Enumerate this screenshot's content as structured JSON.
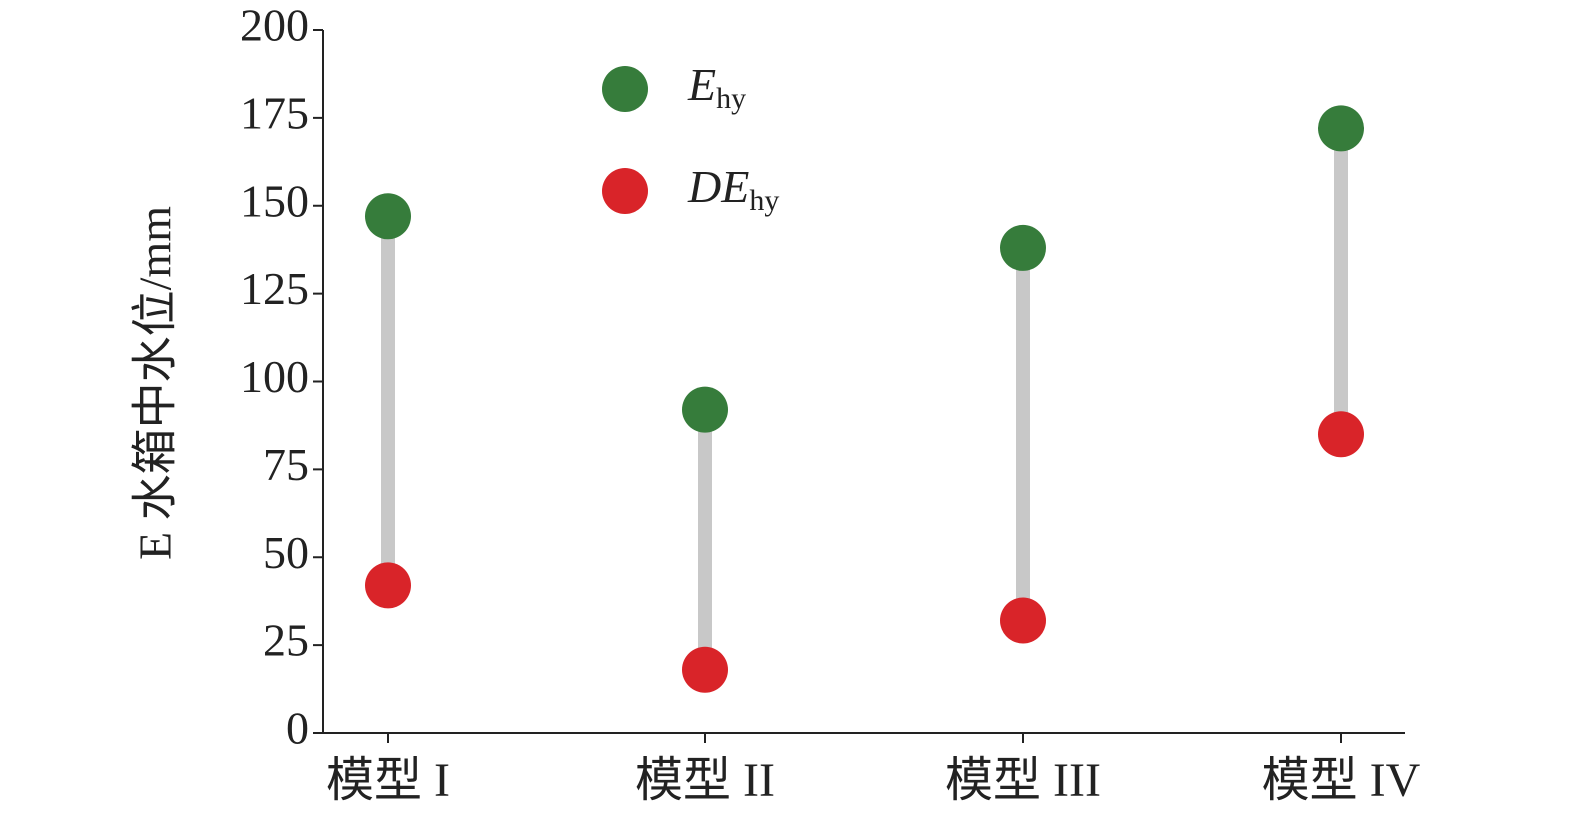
{
  "chart_data": {
    "type": "dumbbell",
    "y_label": "E 水箱中水位/mm",
    "categories": [
      "模型 I",
      "模型 II",
      "模型 III",
      "模型 IV"
    ],
    "series": [
      {
        "name": "E",
        "subscript": "hy",
        "color": "#367c3b",
        "values": [
          147,
          92,
          138,
          172
        ]
      },
      {
        "name": "DE",
        "subscript": "hy",
        "color": "#d92429",
        "values": [
          42,
          18,
          32,
          85
        ]
      }
    ],
    "connector_color": "#c8c8c8",
    "ylim": [
      0,
      200
    ],
    "yticks": [
      0,
      25,
      50,
      75,
      100,
      125,
      150,
      175,
      200
    ],
    "grid": false
  }
}
